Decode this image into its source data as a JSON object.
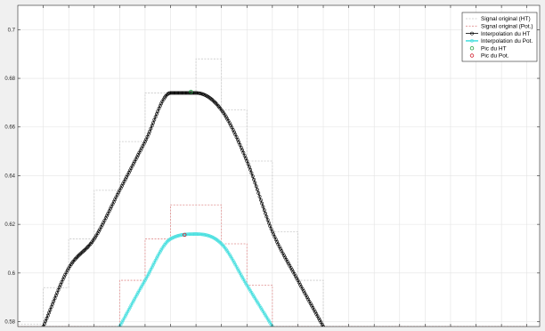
{
  "colors": {
    "background": "#f0f0f0",
    "plot_area": "#ffffff",
    "axis": "#262626",
    "grid": "#e3e3e3",
    "ht_original": "#c8c8c8",
    "pot_original": "#e08e8e",
    "ht_interp": "#000000",
    "pot_interp": "#4de0e0",
    "ht_peak": "#1e9e3e",
    "pot_peak": "#d01f2f"
  },
  "chart_data": {
    "type": "line",
    "title": "",
    "xlabel": "",
    "ylabel": "",
    "xlim": [
      0,
      20.5
    ],
    "ylim": [
      0.578,
      0.71
    ],
    "grid": true,
    "legend_position": "top-right",
    "yticks": [
      0.58,
      0.6,
      0.62,
      0.64,
      0.66,
      0.68,
      0.7
    ],
    "ytick_labels": [
      "0.58",
      "0.6",
      "0.62",
      "0.64",
      "0.66",
      "0.68",
      "0.7"
    ],
    "legend": [
      "Signal original (HT)",
      "Signal original (Pot.)",
      "Interpolation du HT",
      "Interpolation du Pot.",
      "Pic du HT",
      "Pic du Pot."
    ],
    "series": [
      {
        "name": "Signal original (HT)",
        "style": "stairs",
        "x": [
          0,
          1,
          2,
          3,
          4,
          5,
          6,
          7,
          8,
          9,
          10,
          11,
          12,
          13,
          14,
          15,
          16,
          17,
          18,
          19
        ],
        "y": [
          0.579,
          0.594,
          0.614,
          0.634,
          0.654,
          0.674,
          0.674,
          0.688,
          0.667,
          0.646,
          0.617,
          0.597,
          0.578,
          0.578,
          0.578,
          0.578,
          0.578,
          0.578,
          0.578,
          0.578
        ]
      },
      {
        "name": "Signal original (Pot.)",
        "style": "stairs",
        "x": [
          0,
          1,
          2,
          3,
          4,
          5,
          6,
          7,
          8,
          9,
          10,
          11,
          12,
          13,
          14,
          15,
          16,
          17,
          18,
          19
        ],
        "y": [
          0.578,
          0.578,
          0.578,
          0.578,
          0.597,
          0.614,
          0.628,
          0.628,
          0.612,
          0.595,
          0.578,
          0.578,
          0.578,
          0.578,
          0.578,
          0.578,
          0.578,
          0.578,
          0.578,
          0.578
        ]
      },
      {
        "name": "Interpolation du HT",
        "style": "line-markers",
        "x": [
          1,
          2,
          3,
          4,
          5,
          6,
          7,
          8,
          9,
          10,
          11,
          12
        ],
        "y": [
          0.578,
          0.602,
          0.614,
          0.634,
          0.654,
          0.674,
          0.674,
          0.667,
          0.646,
          0.617,
          0.597,
          0.578
        ]
      },
      {
        "name": "Interpolation du Pot.",
        "style": "line-markers",
        "x": [
          4,
          5,
          6,
          7,
          8,
          9,
          10
        ],
        "y": [
          0.578,
          0.597,
          0.614,
          0.616,
          0.612,
          0.595,
          0.578
        ]
      },
      {
        "name": "Pic du HT",
        "style": "marker",
        "x": [
          6.8
        ],
        "y": [
          0.6745
        ]
      },
      {
        "name": "Pic du Pot.",
        "style": "marker",
        "x": [
          6.55
        ],
        "y": [
          0.6157
        ]
      }
    ]
  }
}
